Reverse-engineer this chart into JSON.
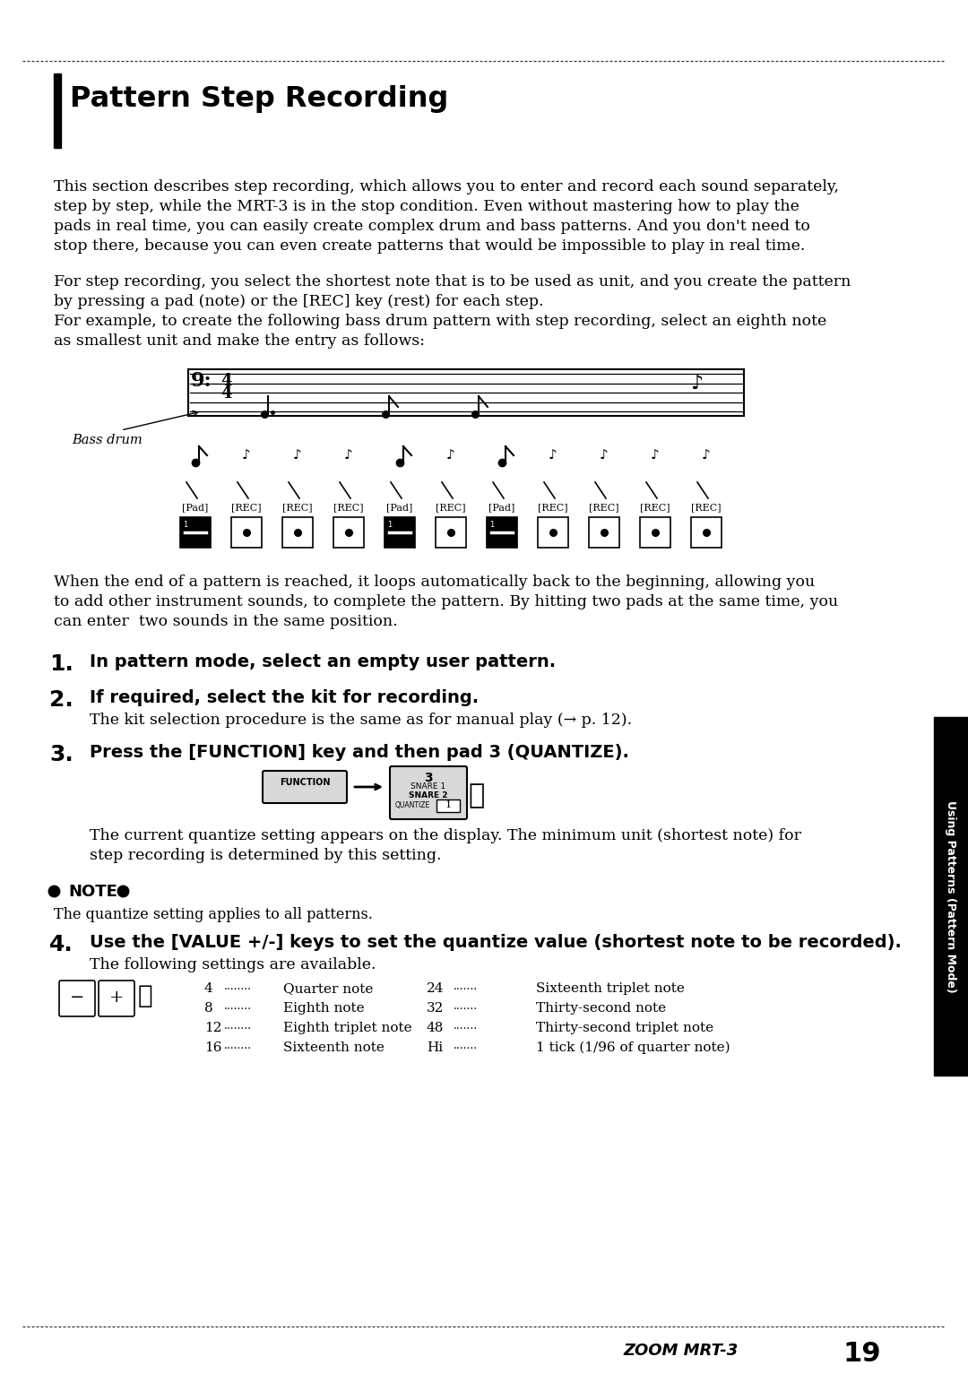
{
  "title": "Pattern Step Recording",
  "bg_color": "#ffffff",
  "sidebar_label": "Using Patterns (Pattern Mode)",
  "footer_text": "ZOOM MRT-3",
  "footer_page": "19",
  "para1_lines": [
    "This section describes step recording, which allows you to enter and record each sound separately,",
    "step by step, while the MRT-3 is in the stop condition. Even without mastering how to play the",
    "pads in real time, you can easily create complex drum and bass patterns. And you don't need to",
    "stop there, because you can even create patterns that would be impossible to play in real time."
  ],
  "para2a_lines": [
    "For step recording, you select the shortest note that is to be used as unit, and you create the pattern",
    "by pressing a pad (note) or the [REC] key (rest) for each step."
  ],
  "para2b_lines": [
    "For example, to create the following bass drum pattern with step recording, select an eighth note",
    "as smallest unit and make the entry as follows:"
  ],
  "pad_labels": [
    "[Pad]",
    "[REC]",
    "[REC]",
    "[REC]",
    "[Pad]",
    "[REC]",
    "[Pad]",
    "[REC]",
    "[REC]",
    "[REC]",
    "[REC]"
  ],
  "pad_is_pad": [
    true,
    false,
    false,
    false,
    true,
    false,
    true,
    false,
    false,
    false,
    false
  ],
  "para3_lines": [
    "When the end of a pattern is reached, it loops automatically back to the beginning, allowing you",
    "to add other instrument sounds, to complete the pattern. By hitting two pads at the same time, you",
    "can enter  two sounds in the same position."
  ],
  "step1_bold": "In pattern mode, select an empty user pattern.",
  "step2_bold": "If required, select the kit for recording.",
  "step2_body": "The kit selection procedure is the same as for manual play (→ p. 12).",
  "step3_bold": "Press the [FUNCTION] key and then pad 3 (QUANTIZE).",
  "step3_body": [
    "The current quantize setting appears on the display. The minimum unit (shortest note) for",
    "step recording is determined by this setting."
  ],
  "note_body": "The quantize setting applies to all patterns.",
  "step4_bold": "Use the [VALUE +/-] keys to set the quantize value (shortest note to be recorded).",
  "step4_body": "The following settings are available.",
  "table_left": [
    [
      "4",
      "Quarter note"
    ],
    [
      "8",
      "Eighth note"
    ],
    [
      "12",
      "Eighth triplet note"
    ],
    [
      "16",
      "Sixteenth note"
    ]
  ],
  "table_right": [
    [
      "24",
      "Sixteenth triplet note"
    ],
    [
      "32",
      "Thirty-second note"
    ],
    [
      "48",
      "Thirty-second triplet note"
    ],
    [
      "Hi",
      "1 tick (1/96 of quarter note)"
    ]
  ]
}
